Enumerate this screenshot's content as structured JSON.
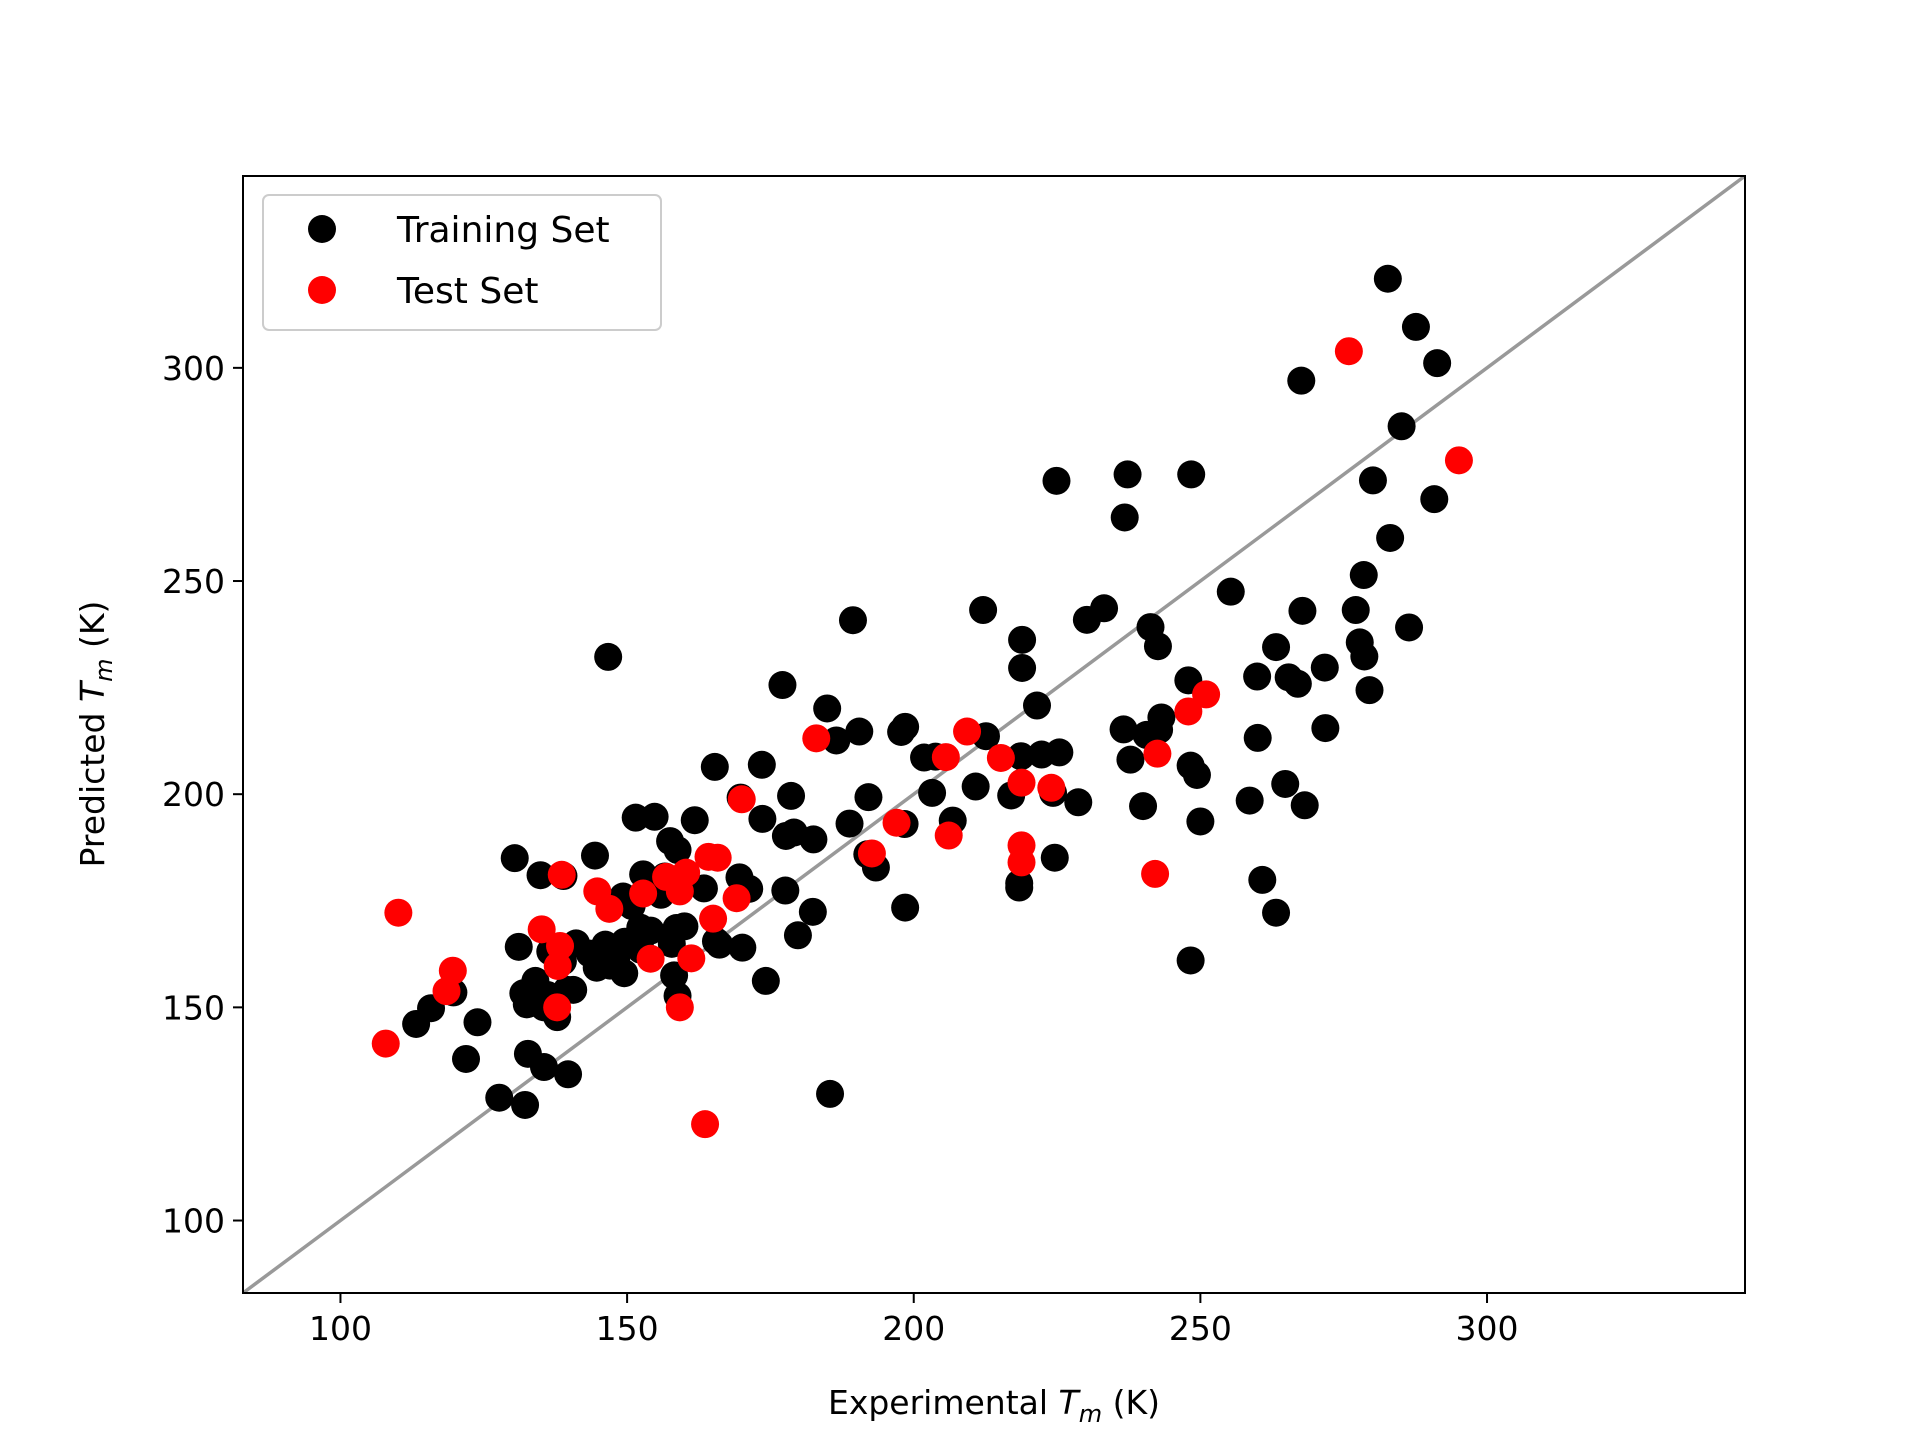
{
  "chart_data": {
    "type": "scatter",
    "xlabel": "Experimental T_m (K)",
    "xlabel_parts": [
      "Experimental ",
      "T",
      "m",
      " (K)"
    ],
    "ylabel": "Predicted T_m (K)",
    "ylabel_parts": [
      "Predicted ",
      "T",
      "m",
      " (K)"
    ],
    "xlim": [
      83,
      345
    ],
    "ylim": [
      83,
      345
    ],
    "xticks": [
      "100",
      "150",
      "200",
      "250",
      "300"
    ],
    "yticks": [
      "100",
      "150",
      "200",
      "250",
      "300"
    ],
    "grid": false,
    "legend_position": "top-left",
    "identity_line": {
      "from": [
        83,
        83
      ],
      "to": [
        345,
        345
      ],
      "color": "#999999"
    },
    "series": [
      {
        "name": "Training Set",
        "color": "#000000",
        "points": [
          [
            282.7,
            320.9
          ],
          [
            287.6,
            309.6
          ],
          [
            291.3,
            301.1
          ],
          [
            267.6,
            297.0
          ],
          [
            285.1,
            286.3
          ],
          [
            280.1,
            273.6
          ],
          [
            224.9,
            273.5
          ],
          [
            237.3,
            275.0
          ],
          [
            248.4,
            275.0
          ],
          [
            290.8,
            269.2
          ],
          [
            236.8,
            264.9
          ],
          [
            283.1,
            260.1
          ],
          [
            278.5,
            251.4
          ],
          [
            255.3,
            247.5
          ],
          [
            212.1,
            243.2
          ],
          [
            233.2,
            243.6
          ],
          [
            230.2,
            240.9
          ],
          [
            189.4,
            240.8
          ],
          [
            267.8,
            243.0
          ],
          [
            277.1,
            243.2
          ],
          [
            241.3,
            239.2
          ],
          [
            277.8,
            235.6
          ],
          [
            286.4,
            239.1
          ],
          [
            218.9,
            236.2
          ],
          [
            146.7,
            232.2
          ],
          [
            242.6,
            234.7
          ],
          [
            263.2,
            234.5
          ],
          [
            278.6,
            232.3
          ],
          [
            218.9,
            229.6
          ],
          [
            271.7,
            229.7
          ],
          [
            247.9,
            226.7
          ],
          [
            259.9,
            227.6
          ],
          [
            265.4,
            227.4
          ],
          [
            267.0,
            225.9
          ],
          [
            279.5,
            224.4
          ],
          [
            177.1,
            225.6
          ],
          [
            221.5,
            220.8
          ],
          [
            184.9,
            220.1
          ],
          [
            243.2,
            218.0
          ],
          [
            236.6,
            215.2
          ],
          [
            240.6,
            213.9
          ],
          [
            242.8,
            215.1
          ],
          [
            271.8,
            215.5
          ],
          [
            198.5,
            215.8
          ],
          [
            197.8,
            214.6
          ],
          [
            186.5,
            212.6
          ],
          [
            190.5,
            214.7
          ],
          [
            212.6,
            213.6
          ],
          [
            260.0,
            213.2
          ],
          [
            201.8,
            208.6
          ],
          [
            203.8,
            208.8
          ],
          [
            173.5,
            206.9
          ],
          [
            165.3,
            206.4
          ],
          [
            237.8,
            208.1
          ],
          [
            218.7,
            208.9
          ],
          [
            222.3,
            209.3
          ],
          [
            225.4,
            209.8
          ],
          [
            248.3,
            206.7
          ],
          [
            249.4,
            204.5
          ],
          [
            210.8,
            201.8
          ],
          [
            203.2,
            200.3
          ],
          [
            217.0,
            199.7
          ],
          [
            224.3,
            200.3
          ],
          [
            228.7,
            198.1
          ],
          [
            192.1,
            199.3
          ],
          [
            178.6,
            199.6
          ],
          [
            169.8,
            199.2
          ],
          [
            258.6,
            198.5
          ],
          [
            264.8,
            202.4
          ],
          [
            268.2,
            197.4
          ],
          [
            240.0,
            197.2
          ],
          [
            154.8,
            194.7
          ],
          [
            151.5,
            194.5
          ],
          [
            161.8,
            193.9
          ],
          [
            173.6,
            194.2
          ],
          [
            188.8,
            193.1
          ],
          [
            198.4,
            193.0
          ],
          [
            206.8,
            193.8
          ],
          [
            250.0,
            193.6
          ],
          [
            179.1,
            191.0
          ],
          [
            177.7,
            190.2
          ],
          [
            182.5,
            189.4
          ],
          [
            157.5,
            189.0
          ],
          [
            158.8,
            186.9
          ],
          [
            144.4,
            185.6
          ],
          [
            130.4,
            185.0
          ],
          [
            191.9,
            185.9
          ],
          [
            193.4,
            182.8
          ],
          [
            224.6,
            185.1
          ],
          [
            152.8,
            181.2
          ],
          [
            156.6,
            180.7
          ],
          [
            134.9,
            181.0
          ],
          [
            138.9,
            180.8
          ],
          [
            169.6,
            180.5
          ],
          [
            163.4,
            177.9
          ],
          [
            171.3,
            177.8
          ],
          [
            177.6,
            177.4
          ],
          [
            153.1,
            177.0
          ],
          [
            155.9,
            176.4
          ],
          [
            149.3,
            176.0
          ],
          [
            218.4,
            179.1
          ],
          [
            218.4,
            178.1
          ],
          [
            198.5,
            173.4
          ],
          [
            182.4,
            172.4
          ],
          [
            150.8,
            173.8
          ],
          [
            158.6,
            168.6
          ],
          [
            160.0,
            169.0
          ],
          [
            154.1,
            168.0
          ],
          [
            152.3,
            168.7
          ],
          [
            260.8,
            179.9
          ],
          [
            263.2,
            172.2
          ],
          [
            131.1,
            164.2
          ],
          [
            141.1,
            165.0
          ],
          [
            143.5,
            162.6
          ],
          [
            147.6,
            163.4
          ],
          [
            149.6,
            165.4
          ],
          [
            146.2,
            164.7
          ],
          [
            152.4,
            163.5
          ],
          [
            157.8,
            164.9
          ],
          [
            165.5,
            165.5
          ],
          [
            166.1,
            164.7
          ],
          [
            170.1,
            164.0
          ],
          [
            179.8,
            166.9
          ],
          [
            136.6,
            163.1
          ],
          [
            138.8,
            160.8
          ],
          [
            144.7,
            159.3
          ],
          [
            147.0,
            159.8
          ],
          [
            148.1,
            161.1
          ],
          [
            149.5,
            158.0
          ],
          [
            158.2,
            157.5
          ],
          [
            174.2,
            156.2
          ],
          [
            248.3,
            161.0
          ],
          [
            131.9,
            153.3
          ],
          [
            134.0,
            156.2
          ],
          [
            136.1,
            152.9
          ],
          [
            139.5,
            154.1
          ],
          [
            140.6,
            154.1
          ],
          [
            135.5,
            150.0
          ],
          [
            137.8,
            147.7
          ],
          [
            132.5,
            150.7
          ],
          [
            115.8,
            149.8
          ],
          [
            113.2,
            146.1
          ],
          [
            119.7,
            153.5
          ],
          [
            123.9,
            146.5
          ],
          [
            158.8,
            152.7
          ],
          [
            132.7,
            139.1
          ],
          [
            121.9,
            137.9
          ],
          [
            135.5,
            136.0
          ],
          [
            139.7,
            134.3
          ],
          [
            127.7,
            128.8
          ],
          [
            132.2,
            127.1
          ],
          [
            185.4,
            129.7
          ]
        ]
      },
      {
        "name": "Test Set",
        "color": "#ff0000",
        "points": [
          [
            275.9,
            303.9
          ],
          [
            295.1,
            278.3
          ],
          [
            251.0,
            223.4
          ],
          [
            247.9,
            219.4
          ],
          [
            209.3,
            214.7
          ],
          [
            183.0,
            213.1
          ],
          [
            205.6,
            208.7
          ],
          [
            215.2,
            208.5
          ],
          [
            242.5,
            209.5
          ],
          [
            218.8,
            202.7
          ],
          [
            224.0,
            201.5
          ],
          [
            170.0,
            198.8
          ],
          [
            197.0,
            193.3
          ],
          [
            192.7,
            186.1
          ],
          [
            206.1,
            190.3
          ],
          [
            218.8,
            188.0
          ],
          [
            218.8,
            184.0
          ],
          [
            242.1,
            181.3
          ],
          [
            138.6,
            181.1
          ],
          [
            164.2,
            185.3
          ],
          [
            165.8,
            185.1
          ],
          [
            160.3,
            181.6
          ],
          [
            156.8,
            180.6
          ],
          [
            159.2,
            177.2
          ],
          [
            144.8,
            177.2
          ],
          [
            146.9,
            173.1
          ],
          [
            152.8,
            176.7
          ],
          [
            169.1,
            175.6
          ],
          [
            165.0,
            170.8
          ],
          [
            135.1,
            168.3
          ],
          [
            138.3,
            164.4
          ],
          [
            137.9,
            159.7
          ],
          [
            154.1,
            161.4
          ],
          [
            161.2,
            161.5
          ],
          [
            110.1,
            172.2
          ],
          [
            119.6,
            158.6
          ],
          [
            118.5,
            153.8
          ],
          [
            137.8,
            150.0
          ],
          [
            159.2,
            150.0
          ],
          [
            107.9,
            141.5
          ],
          [
            163.6,
            122.6
          ]
        ]
      }
    ]
  }
}
